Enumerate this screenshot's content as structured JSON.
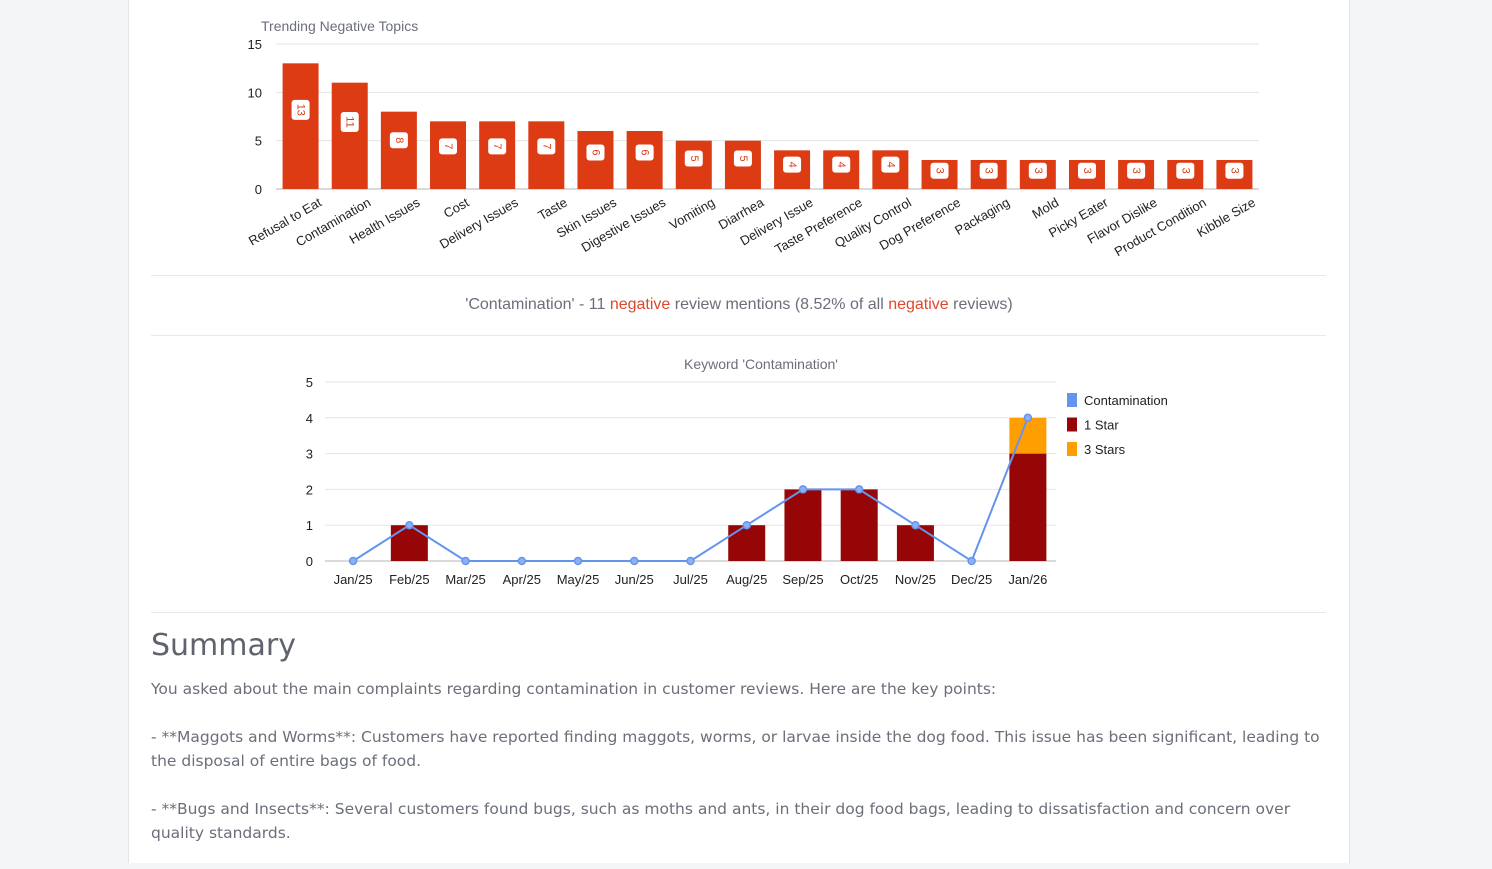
{
  "colors": {
    "bar": "#dc3b14",
    "one_star": "#960606",
    "three_stars": "#ff9e00",
    "line": "#6495ed"
  },
  "chart_data": [
    {
      "type": "bar",
      "title": "Trending Negative Topics",
      "ylim": [
        0,
        15
      ],
      "yticks": [
        0,
        5,
        10,
        15
      ],
      "grid": true,
      "categories": [
        "Refusal to Eat",
        "Contamination",
        "Health Issues",
        "Cost",
        "Delivery Issues",
        "Taste",
        "Skin Issues",
        "Digestive Issues",
        "Vomiting",
        "Diarrhea",
        "Delivery Issue",
        "Taste Preference",
        "Quality Control",
        "Dog Preference",
        "Packaging",
        "Mold",
        "Picky Eater",
        "Flavor Dislike",
        "Product Condition",
        "Kibble Size"
      ],
      "values": [
        13,
        11,
        8,
        7,
        7,
        7,
        6,
        6,
        5,
        5,
        4,
        4,
        4,
        3,
        3,
        3,
        3,
        3,
        3,
        3
      ]
    },
    {
      "type": "bar+line",
      "title": "Keyword 'Contamination'",
      "ylim": [
        0,
        5
      ],
      "yticks": [
        0,
        1,
        2,
        3,
        4,
        5
      ],
      "grid": true,
      "legend": "right",
      "categories": [
        "Jan/25",
        "Feb/25",
        "Mar/25",
        "Apr/25",
        "May/25",
        "Jun/25",
        "Jul/25",
        "Aug/25",
        "Sep/25",
        "Oct/25",
        "Nov/25",
        "Dec/25",
        "Jan/26"
      ],
      "series": [
        {
          "name": "Contamination",
          "kind": "line",
          "values": [
            0,
            1,
            0,
            0,
            0,
            0,
            0,
            1,
            2,
            2,
            1,
            0,
            4
          ]
        },
        {
          "name": "1 Star",
          "kind": "stacked-bar",
          "values": [
            0,
            1,
            0,
            0,
            0,
            0,
            0,
            1,
            2,
            2,
            1,
            0,
            3
          ]
        },
        {
          "name": "3 Stars",
          "kind": "stacked-bar",
          "values": [
            0,
            0,
            0,
            0,
            0,
            0,
            0,
            0,
            0,
            0,
            0,
            0,
            1
          ]
        }
      ]
    }
  ],
  "caption": {
    "keyword": "'Contamination'",
    "sep": " - ",
    "count": "11",
    "neg1": "negative",
    "mid": " review mentions (8.52% of all ",
    "neg2": "negative",
    "end": " reviews)"
  },
  "summary": {
    "title": "Summary",
    "paragraphs": [
      "You asked about the main complaints regarding contamination in customer reviews. Here are the key points:",
      "- **Maggots and Worms**: Customers have reported finding maggots, worms, or larvae inside the dog food. This issue has been significant, leading to the disposal of entire bags of food.",
      "- **Bugs and Insects**: Several customers found bugs, such as moths and ants, in their dog food bags, leading to dissatisfaction and concern over quality standards."
    ]
  }
}
